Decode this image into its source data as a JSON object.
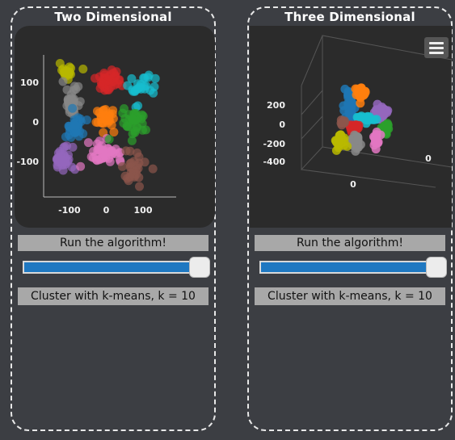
{
  "panels": [
    {
      "title": "Two Dimensional",
      "run_label": "Run the algorithm!",
      "k_label": "Cluster with k-means, k = 10",
      "slider": {
        "value_fraction": 1.0
      },
      "chart_data": {
        "type": "scatter",
        "x_ticks": [
          "-100",
          "0",
          "100"
        ],
        "y_ticks": [
          "100",
          "0",
          "-100"
        ],
        "xlim": [
          -170,
          190
        ],
        "ylim": [
          -190,
          170
        ],
        "clusters": [
          {
            "color": "#b8b800",
            "cx": -105,
            "cy": 130,
            "sx": 18,
            "sy": 18,
            "n": 22
          },
          {
            "color": "#888888",
            "cx": -95,
            "cy": 50,
            "sx": 18,
            "sy": 30,
            "n": 32
          },
          {
            "color": "#1f77b4",
            "cx": -85,
            "cy": -15,
            "sx": 22,
            "sy": 25,
            "n": 35
          },
          {
            "color": "#9467bd",
            "cx": -120,
            "cy": -95,
            "sx": 25,
            "sy": 28,
            "n": 35
          },
          {
            "color": "#d62728",
            "cx": 10,
            "cy": 105,
            "sx": 30,
            "sy": 25,
            "n": 40
          },
          {
            "color": "#ff7f0e",
            "cx": 0,
            "cy": 10,
            "sx": 20,
            "sy": 25,
            "n": 32
          },
          {
            "color": "#e377c2",
            "cx": -5,
            "cy": -75,
            "sx": 40,
            "sy": 18,
            "n": 42
          },
          {
            "color": "#17becf",
            "cx": 95,
            "cy": 85,
            "sx": 35,
            "sy": 35,
            "n": 25
          },
          {
            "color": "#2ca02c",
            "cx": 80,
            "cy": 0,
            "sx": 28,
            "sy": 30,
            "n": 35
          },
          {
            "color": "#8c564b",
            "cx": 70,
            "cy": -115,
            "sx": 30,
            "sy": 35,
            "n": 30
          }
        ]
      }
    },
    {
      "title": "Three Dimensional",
      "run_label": "Run the algorithm!",
      "k_label": "Cluster with k-means, k = 10",
      "slider": {
        "value_fraction": 1.0
      },
      "menu_icon": "hamburger-icon",
      "chart_data": {
        "type": "scatter",
        "z_ticks": [
          "200",
          "0",
          "-200",
          "-400"
        ],
        "x_ticks": [
          "0"
        ],
        "y_ticks": [
          "0"
        ],
        "clusters": [
          {
            "color": "#1f77b4",
            "cx": 0.0,
            "cy": 0.15,
            "sx": 0.06,
            "sy": 0.18,
            "n": 35
          },
          {
            "color": "#ff7f0e",
            "cx": 0.12,
            "cy": 0.35,
            "sx": 0.06,
            "sy": 0.05,
            "n": 40
          },
          {
            "color": "#9467bd",
            "cx": 0.36,
            "cy": 0.12,
            "sx": 0.06,
            "sy": 0.07,
            "n": 32
          },
          {
            "color": "#17becf",
            "cx": 0.18,
            "cy": 0.05,
            "sx": 0.1,
            "sy": 0.03,
            "n": 25
          },
          {
            "color": "#d62728",
            "cx": 0.04,
            "cy": -0.06,
            "sx": 0.05,
            "sy": 0.04,
            "n": 30
          },
          {
            "color": "#888888",
            "cx": 0.05,
            "cy": -0.22,
            "sx": 0.05,
            "sy": 0.08,
            "n": 35
          },
          {
            "color": "#b8b800",
            "cx": -0.12,
            "cy": -0.2,
            "sx": 0.06,
            "sy": 0.08,
            "n": 32
          },
          {
            "color": "#8c564b",
            "cx": -0.1,
            "cy": 0.02,
            "sx": 0.02,
            "sy": 0.04,
            "n": 8
          },
          {
            "color": "#2ca02c",
            "cx": 0.41,
            "cy": -0.08,
            "sx": 0.04,
            "sy": 0.06,
            "n": 25
          },
          {
            "color": "#e377c2",
            "cx": 0.3,
            "cy": -0.2,
            "sx": 0.03,
            "sy": 0.1,
            "n": 18
          }
        ]
      }
    }
  ]
}
